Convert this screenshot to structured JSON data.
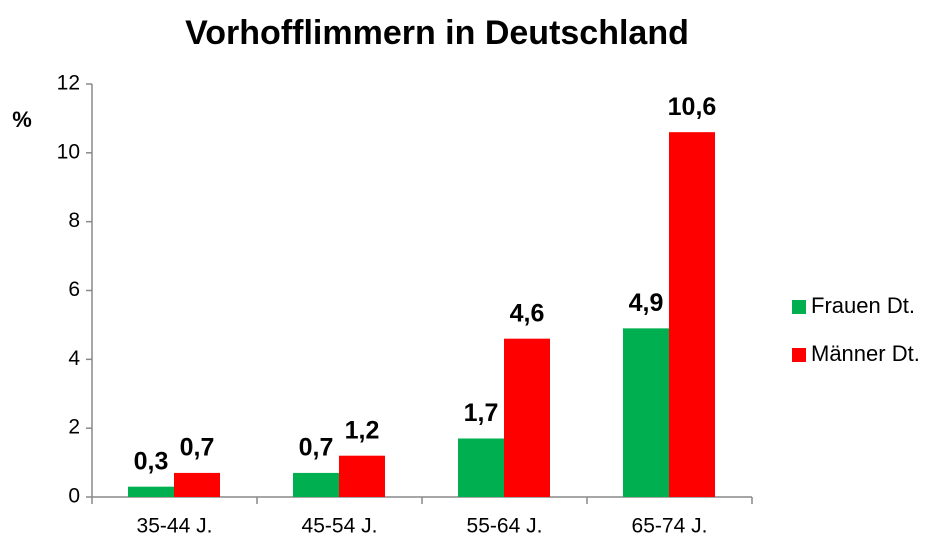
{
  "chart_data": {
    "type": "bar",
    "title": "Vorhofflimmern in Deutschland",
    "y_label": "%",
    "categories": [
      "35-44 J.",
      "45-54 J.",
      "55-64 J.",
      "65-74 J."
    ],
    "series": [
      {
        "name": "Frauen Dt.",
        "color": "#00b050",
        "values": [
          0.3,
          0.7,
          1.7,
          4.9
        ],
        "value_labels": [
          "0,3",
          "0,7",
          "1,7",
          "4,9"
        ]
      },
      {
        "name": "Männer Dt.",
        "color": "#ff0000",
        "values": [
          0.7,
          1.2,
          4.6,
          10.6
        ],
        "value_labels": [
          "0,7",
          "1,2",
          "4,6",
          "10,6"
        ]
      }
    ],
    "ylim": [
      0,
      12
    ],
    "yticks": [
      0,
      2,
      4,
      6,
      8,
      10,
      12
    ],
    "grid": false,
    "legend": "right"
  }
}
